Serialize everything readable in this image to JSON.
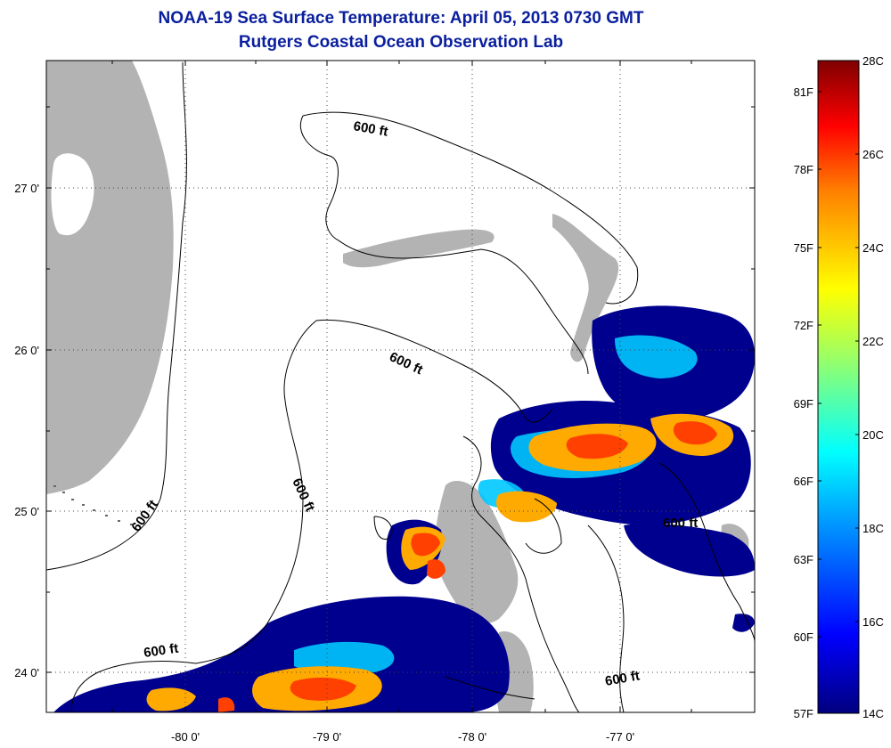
{
  "title": {
    "line1": "NOAA-19 Sea Surface Temperature:  April 05, 2013 0730 GMT",
    "line2": "Rutgers Coastal Ocean Observation Lab"
  },
  "axes": {
    "x_ticks": [
      "-80 0'",
      "-79 0'",
      "-78 0'",
      "-77 0'"
    ],
    "y_ticks": [
      "27 0'",
      "26 0'",
      "25 0'",
      "24 0'"
    ]
  },
  "contour_labels": [
    "600 ft",
    "600 ft",
    "600 ft",
    "600 ft",
    "600 ft",
    "600 ft"
  ],
  "colorbar": {
    "celsius": [
      "28C",
      "26C",
      "24C",
      "22C",
      "20C",
      "18C",
      "16C",
      "14C"
    ],
    "fahrenheit": [
      "81F",
      "78F",
      "75F",
      "72F",
      "69F",
      "66F",
      "63F",
      "60F",
      "57F"
    ]
  },
  "colors": {
    "land": "#b3b3b3",
    "title": "#0a1f9e",
    "cold": "#00008f",
    "warm": "#ff4000"
  }
}
